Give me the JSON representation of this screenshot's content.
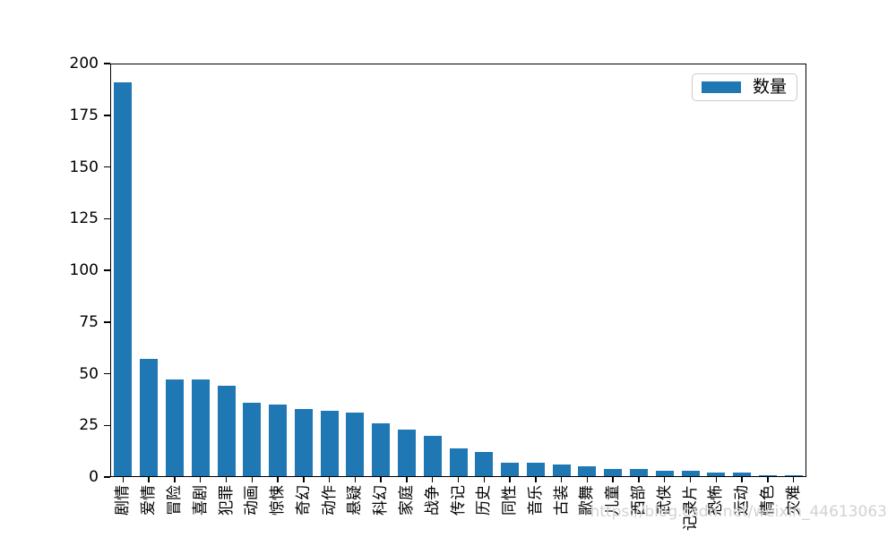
{
  "figure": {
    "background": "#ffffff",
    "watermark": "https://blog.csdn.net/weixin_44613063",
    "watermark_color": "#d2d2d2"
  },
  "legend": {
    "label": "数量",
    "swatch_color": "#1f77b4"
  },
  "chart_data": {
    "type": "bar",
    "title": "",
    "xlabel": "",
    "ylabel": "",
    "categories": [
      "剧情",
      "爱情",
      "冒险",
      "喜剧",
      "犯罪",
      "动画",
      "惊悚",
      "奇幻",
      "动作",
      "悬疑",
      "科幻",
      "家庭",
      "战争",
      "传记",
      "历史",
      "同性",
      "音乐",
      "古装",
      "歌舞",
      "儿童",
      "西部",
      "武侠",
      "记录片",
      "恐怖",
      "运动",
      "情色",
      "灾难"
    ],
    "series": [
      {
        "name": "数量",
        "values": [
          191,
          57,
          47,
          47,
          44,
          36,
          35,
          33,
          32,
          31,
          26,
          23,
          20,
          14,
          12,
          7,
          7,
          6,
          5,
          4,
          4,
          3,
          3,
          2,
          2,
          1,
          1
        ]
      }
    ],
    "ylim": [
      0,
      200
    ],
    "yticks": [
      0,
      25,
      50,
      75,
      100,
      125,
      150,
      175,
      200
    ],
    "bar_color": "#1f77b4",
    "axis_color": "#000000",
    "grid": false,
    "legend_position": "upper-right",
    "xtick_rotation_deg": 90
  }
}
